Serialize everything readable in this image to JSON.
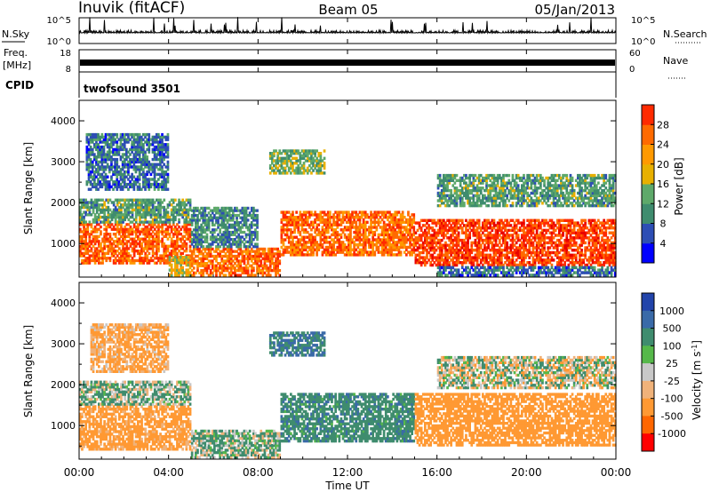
{
  "header": {
    "station": "Inuvik (fitACF)",
    "beam": "Beam 05",
    "date": "05/Jan/2013"
  },
  "panels": {
    "nsky": {
      "left_label": "N.Sky",
      "left_ticks": [
        "10^5",
        "10^0"
      ],
      "right_label": "N.Search",
      "right_ticks": [
        "10^5",
        "10^0"
      ]
    },
    "freq": {
      "left_label": "Freq.",
      "left_unit": "[MHz]",
      "left_ticks": [
        "18",
        "8"
      ],
      "right_label": "Nave",
      "right_ticks": [
        "60",
        "0"
      ]
    },
    "cpid": {
      "label": "CPID",
      "value": "twofsound 3501"
    }
  },
  "colors": {
    "power_scale": [
      "#0000ff",
      "#2d4eb4",
      "#3f8c6e",
      "#5ea96a",
      "#e8b000",
      "#ff9900",
      "#ff6a00",
      "#ff2a00",
      "#e80000"
    ],
    "velocity_scale": [
      "#2244aa",
      "#3a6aa8",
      "#3f8c6e",
      "#56b84a",
      "#c8c8c8",
      "#f0b27a",
      "#ff9933",
      "#ff6600",
      "#ff0000"
    ]
  },
  "chart_data": [
    {
      "type": "heatmap",
      "title": "Power",
      "xlabel": "Time UT",
      "ylabel": "Slant Range [km]",
      "x_ticks": [
        "00:00",
        "04:00",
        "08:00",
        "12:00",
        "16:00",
        "20:00",
        "00:00"
      ],
      "xlim_hours": [
        0,
        24
      ],
      "y_ticks": [
        1000,
        2000,
        3000,
        4000
      ],
      "ylim": [
        180,
        4500
      ],
      "colorbar": {
        "label": "Power [dB]",
        "ticks": [
          4,
          8,
          12,
          16,
          20,
          24,
          28
        ],
        "range": [
          0,
          32
        ]
      },
      "regions": [
        {
          "t0": 0.0,
          "t1": 5.0,
          "r0": 500,
          "r1": 1500,
          "level": 27
        },
        {
          "t0": 0.0,
          "t1": 5.0,
          "r0": 1500,
          "r1": 2100,
          "level": 12
        },
        {
          "t0": 0.3,
          "t1": 4.0,
          "r0": 2300,
          "r1": 3700,
          "level": 8
        },
        {
          "t0": 4.0,
          "t1": 5.0,
          "r0": 200,
          "r1": 700,
          "level": 18
        },
        {
          "t0": 5.0,
          "t1": 9.0,
          "r0": 200,
          "r1": 900,
          "level": 26
        },
        {
          "t0": 5.0,
          "t1": 8.0,
          "r0": 900,
          "r1": 1900,
          "level": 10
        },
        {
          "t0": 9.0,
          "t1": 15.0,
          "r0": 700,
          "r1": 1800,
          "level": 26
        },
        {
          "t0": 8.5,
          "t1": 11.0,
          "r0": 2700,
          "r1": 3300,
          "level": 14
        },
        {
          "t0": 15.0,
          "t1": 24.0,
          "r0": 450,
          "r1": 1600,
          "level": 29
        },
        {
          "t0": 16.0,
          "t1": 24.0,
          "r0": 1900,
          "r1": 2700,
          "level": 12
        },
        {
          "t0": 16.0,
          "t1": 24.0,
          "r0": 200,
          "r1": 450,
          "level": 8
        }
      ]
    },
    {
      "type": "heatmap",
      "title": "Velocity",
      "xlabel": "Time UT",
      "ylabel": "Slant Range [km]",
      "x_ticks": [
        "00:00",
        "04:00",
        "08:00",
        "12:00",
        "16:00",
        "20:00",
        "00:00"
      ],
      "xlim_hours": [
        0,
        24
      ],
      "y_ticks": [
        1000,
        2000,
        3000,
        4000
      ],
      "ylim": [
        180,
        4500
      ],
      "colorbar": {
        "label": "Velocity [m s^-1]",
        "ticks": [
          1000,
          500,
          100,
          25,
          -25,
          -100,
          -500,
          -1000
        ]
      },
      "regions": [
        {
          "t0": 0.0,
          "t1": 5.0,
          "r0": 400,
          "r1": 1500,
          "level": -200
        },
        {
          "t0": 0.0,
          "t1": 5.0,
          "r0": 1500,
          "r1": 2100,
          "level": 60
        },
        {
          "t0": 0.5,
          "t1": 4.0,
          "r0": 2300,
          "r1": 3500,
          "level": -150
        },
        {
          "t0": 5.0,
          "t1": 9.0,
          "r0": 200,
          "r1": 900,
          "level": 60
        },
        {
          "t0": 9.0,
          "t1": 15.0,
          "r0": 600,
          "r1": 1800,
          "level": 200
        },
        {
          "t0": 8.5,
          "t1": 11.0,
          "r0": 2700,
          "r1": 3300,
          "level": 300
        },
        {
          "t0": 15.0,
          "t1": 24.0,
          "r0": 500,
          "r1": 1800,
          "level": -300
        },
        {
          "t0": 16.0,
          "t1": 24.0,
          "r0": 1900,
          "r1": 2700,
          "level": 0
        }
      ]
    }
  ]
}
